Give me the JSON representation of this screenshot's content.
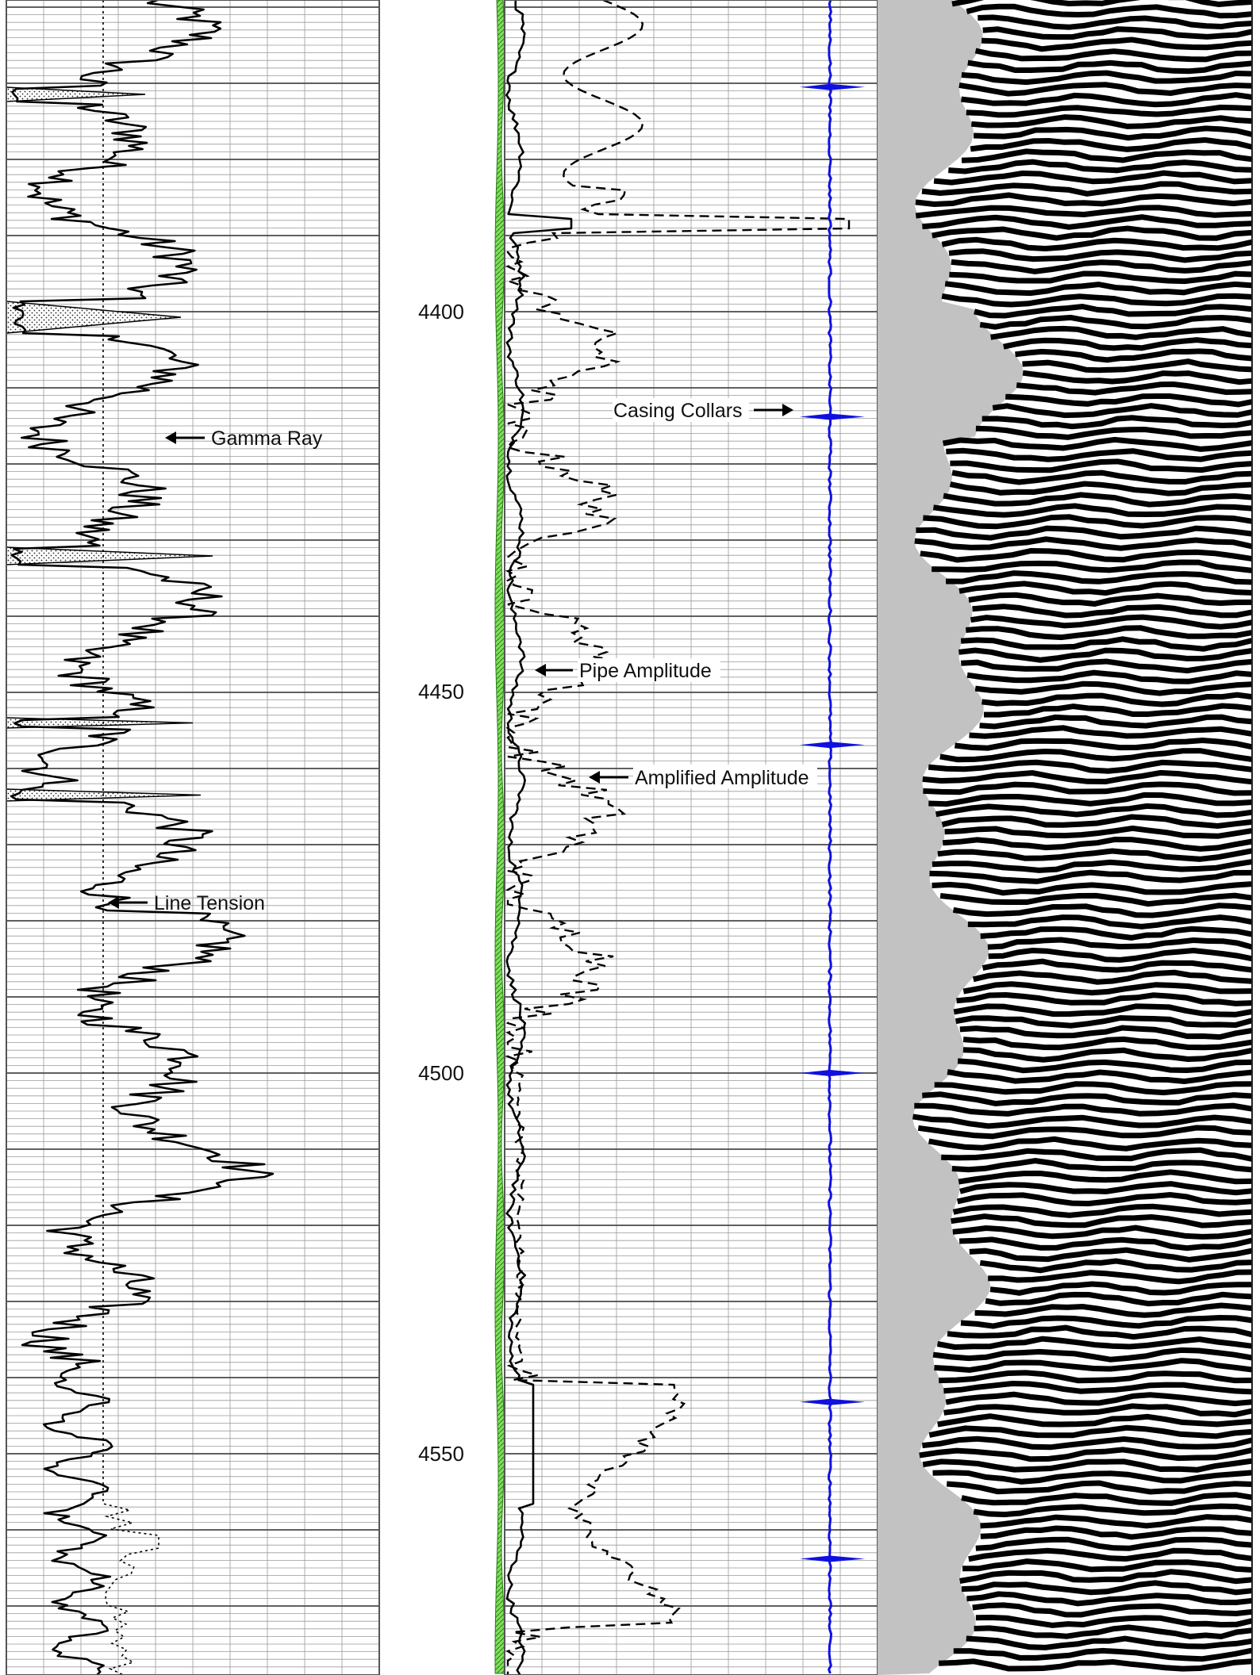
{
  "depth_labels": [
    "4400",
    "4450",
    "4500",
    "4550"
  ],
  "annotations": {
    "gamma_ray": "Gamma Ray",
    "line_tension": "Line Tension",
    "casing_collars": "Casing Collars",
    "pipe_amplitude": "Pipe Amplitude",
    "amplified_amplitude": "Amplified Amplitude"
  },
  "colors": {
    "casing_collar_curve": "#1010e0",
    "cement_fill": "#7ee05a",
    "vdl_background": "#c2c2c2",
    "grid": "#9a9a9a"
  },
  "chart_data": {
    "type": "line",
    "title": "",
    "depth_axis": {
      "top": 4359,
      "bottom": 4579,
      "labels": [
        4400,
        4450,
        4500,
        4550
      ]
    },
    "collar_depths": [
      4370.5,
      4413.8,
      4456.9,
      4500.0,
      4543.2,
      4563.8
    ],
    "series": [
      {
        "name": "Gamma Ray"
      },
      {
        "name": "Line Tension"
      },
      {
        "name": "Pipe Amplitude"
      },
      {
        "name": "Amplified Amplitude"
      },
      {
        "name": "Casing Collars"
      }
    ]
  }
}
